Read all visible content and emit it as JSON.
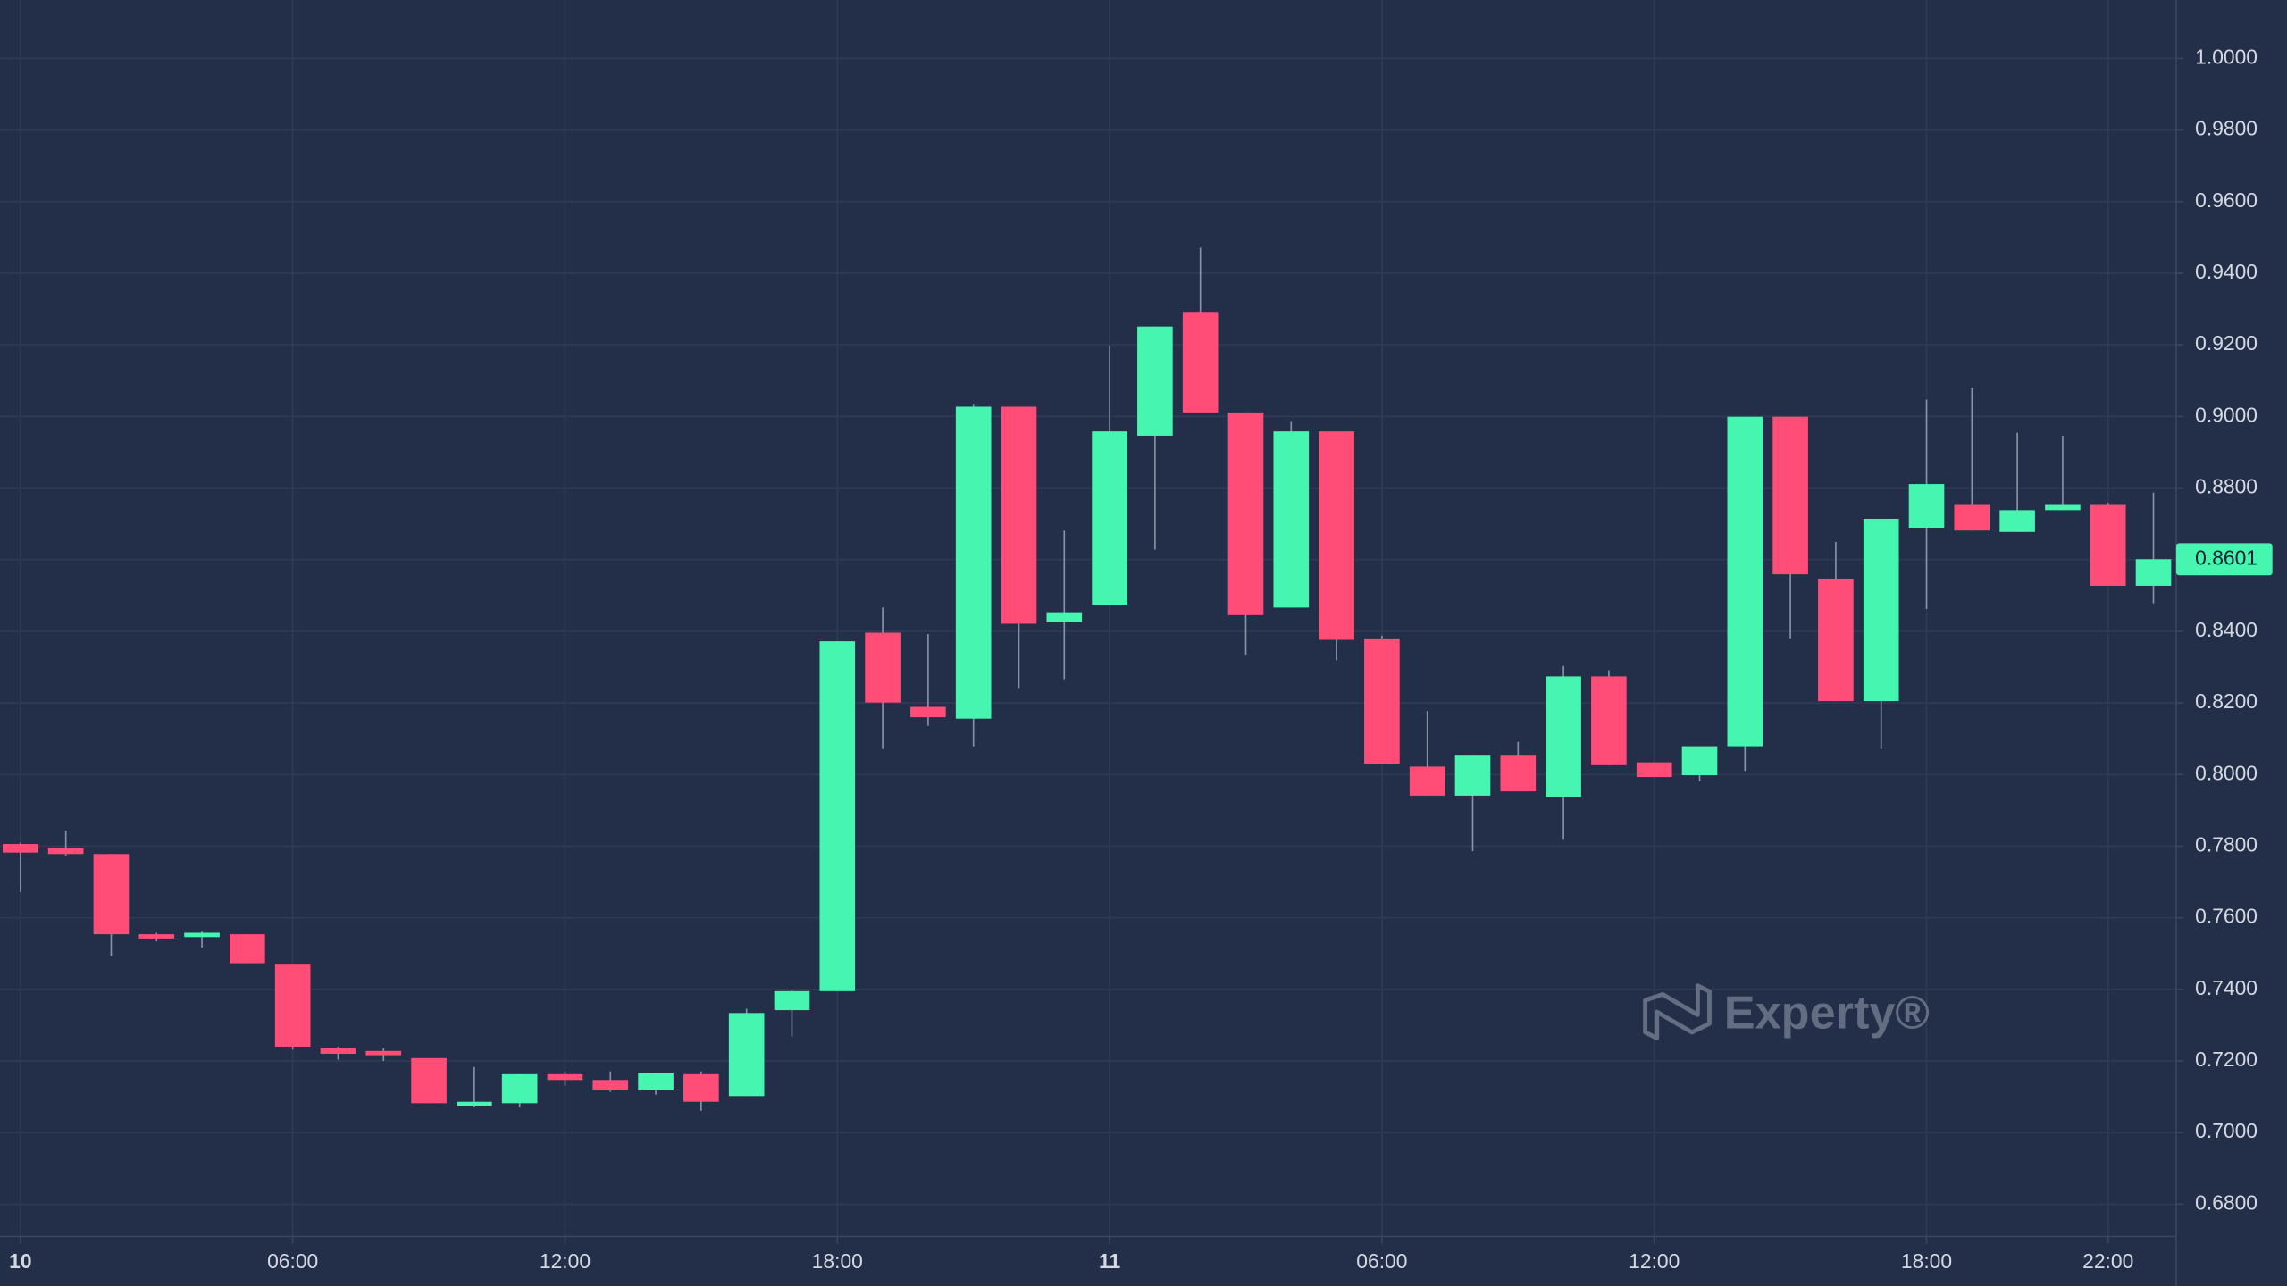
{
  "chart_data": {
    "type": "candlestick",
    "x": [
      0,
      1,
      2,
      3,
      4,
      5,
      6,
      7,
      8,
      9,
      10,
      11,
      12,
      13,
      14,
      15,
      16,
      17,
      18,
      19,
      20,
      21,
      22,
      23,
      24,
      25,
      26,
      27,
      28,
      29,
      30,
      31,
      32,
      33,
      34,
      35,
      36,
      37,
      38,
      39,
      40,
      41,
      42,
      43,
      44,
      45,
      46,
      47
    ],
    "open": [
      0.7806,
      0.7794,
      0.7778,
      0.7554,
      0.7546,
      0.7554,
      0.7469,
      0.7236,
      0.7228,
      0.7208,
      0.7074,
      0.7082,
      0.7163,
      0.7147,
      0.7118,
      0.7163,
      0.7102,
      0.7342,
      0.7395,
      0.8396,
      0.8189,
      0.8156,
      0.9027,
      0.8425,
      0.8474,
      0.8946,
      0.9292,
      0.9011,
      0.8466,
      0.8958,
      0.838,
      0.8022,
      0.7941,
      0.8055,
      0.7937,
      0.8274,
      0.8034,
      0.7998,
      0.8079,
      0.8999,
      0.8547,
      0.8205,
      0.8689,
      0.8755,
      0.8677,
      0.8738,
      0.8755,
      0.8527
    ],
    "high": [
      0.781,
      0.7843,
      0.7778,
      0.7558,
      0.7562,
      0.7554,
      0.7469,
      0.724,
      0.7236,
      0.7208,
      0.7183,
      0.7163,
      0.7171,
      0.7171,
      0.7167,
      0.7171,
      0.7346,
      0.7399,
      0.8372,
      0.8466,
      0.8392,
      0.9035,
      0.9027,
      0.8681,
      0.9198,
      0.9251,
      0.9471,
      0.9011,
      0.8987,
      0.8958,
      0.8388,
      0.8177,
      0.8055,
      0.8091,
      0.8303,
      0.8291,
      0.8034,
      0.8079,
      0.8999,
      0.8999,
      0.8649,
      0.8714,
      0.9047,
      0.908,
      0.8954,
      0.8946,
      0.8759,
      0.8787
    ],
    "low": [
      0.7672,
      0.7774,
      0.7493,
      0.7534,
      0.7517,
      0.7473,
      0.7232,
      0.7204,
      0.72,
      0.7082,
      0.707,
      0.707,
      0.7131,
      0.7114,
      0.7106,
      0.7061,
      0.7102,
      0.7269,
      0.7395,
      0.8071,
      0.8136,
      0.8079,
      0.8242,
      0.8266,
      0.8474,
      0.8628,
      0.9011,
      0.8335,
      0.8466,
      0.8319,
      0.803,
      0.7941,
      0.7786,
      0.7953,
      0.7818,
      0.8026,
      0.7993,
      0.7981,
      0.801,
      0.838,
      0.8205,
      0.8071,
      0.8462,
      0.8681,
      0.8677,
      0.8738,
      0.8527,
      0.8478
    ],
    "close": [
      0.7782,
      0.7778,
      0.7554,
      0.7542,
      0.7558,
      0.7473,
      0.724,
      0.722,
      0.7216,
      0.7082,
      0.7086,
      0.7163,
      0.7147,
      0.7118,
      0.7167,
      0.7086,
      0.7334,
      0.7395,
      0.8372,
      0.8201,
      0.816,
      0.9027,
      0.8421,
      0.8453,
      0.8958,
      0.9251,
      0.9011,
      0.8445,
      0.8958,
      0.8376,
      0.803,
      0.7941,
      0.8055,
      0.7953,
      0.8274,
      0.8026,
      0.7993,
      0.8079,
      0.8999,
      0.8559,
      0.8205,
      0.8714,
      0.8811,
      0.8681,
      0.8738,
      0.8755,
      0.8527,
      0.8601
    ],
    "up_color": "#45f5b0",
    "down_color": "#ff4d78",
    "xlim": [
      -0.45,
      47.5
    ],
    "xticks": [
      {
        "value": 0,
        "label": "10"
      },
      {
        "value": 6,
        "label": "06:00"
      },
      {
        "value": 12,
        "label": "12:00"
      },
      {
        "value": 18,
        "label": "18:00"
      },
      {
        "value": 24,
        "label": "11"
      },
      {
        "value": 30,
        "label": "06:00"
      },
      {
        "value": 36,
        "label": "12:00"
      },
      {
        "value": 42,
        "label": "18:00"
      },
      {
        "value": 46,
        "label": "22:00"
      }
    ],
    "ylim": [
      0.671,
      1.0163
    ],
    "yticks": [
      {
        "value": 0.68,
        "label": "0.6800"
      },
      {
        "value": 0.7,
        "label": "0.7000"
      },
      {
        "value": 0.72,
        "label": "0.7200"
      },
      {
        "value": 0.74,
        "label": "0.7400"
      },
      {
        "value": 0.76,
        "label": "0.7600"
      },
      {
        "value": 0.78,
        "label": "0.7800"
      },
      {
        "value": 0.8,
        "label": "0.8000"
      },
      {
        "value": 0.82,
        "label": "0.8200"
      },
      {
        "value": 0.84,
        "label": "0.8400"
      },
      {
        "value": 0.86,
        "label": "0.8600"
      },
      {
        "value": 0.88,
        "label": "0.8800"
      },
      {
        "value": 0.9,
        "label": "0.9000"
      },
      {
        "value": 0.92,
        "label": "0.9200"
      },
      {
        "value": 0.94,
        "label": "0.9400"
      },
      {
        "value": 0.96,
        "label": "0.9600"
      },
      {
        "value": 0.98,
        "label": "0.9800"
      },
      {
        "value": 1.0,
        "label": "1.0000"
      }
    ],
    "grid": true,
    "last_price": 0.8601,
    "watermark": "Experty®"
  }
}
